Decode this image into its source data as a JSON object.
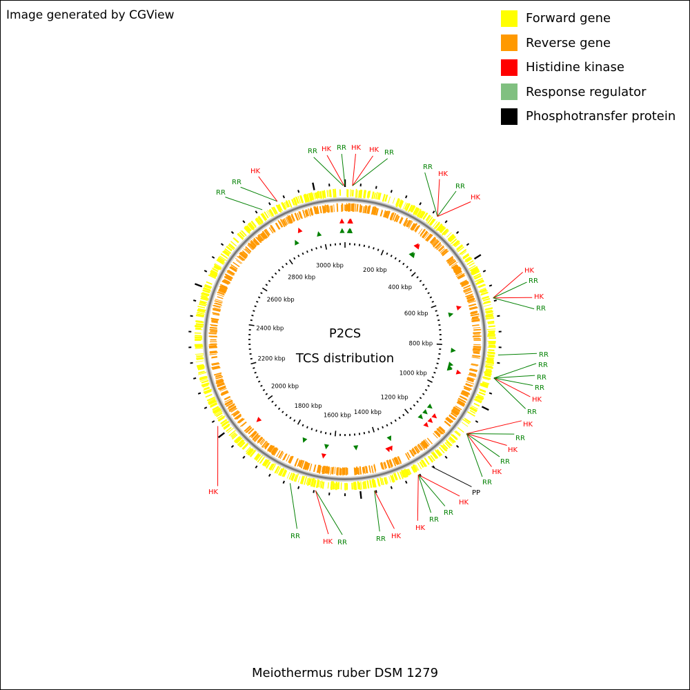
{
  "credit": "Image generated by CGView",
  "legend": [
    {
      "label": "Forward gene",
      "color": "#ffff00"
    },
    {
      "label": "Reverse gene",
      "color": "#ff9900"
    },
    {
      "label": "Histidine kinase",
      "color": "#ff0000"
    },
    {
      "label": "Response regulator",
      "color": "#80c080"
    },
    {
      "label": "Phosphotransfer protein",
      "color": "#000000"
    }
  ],
  "center_title": "P2CS",
  "center_subtitle": "TCS distribution",
  "caption": "Meiothermus ruber DSM 1279",
  "genome_length_kbp": 3100,
  "ruler_labels": [
    "200 kbp",
    "400 kbp",
    "600 kbp",
    "800 kbp",
    "1000 kbp",
    "1200 kbp",
    "1400 kbp",
    "1600 kbp",
    "1800 kbp",
    "2000 kbp",
    "2200 kbp",
    "2400 kbp",
    "2600 kbp",
    "2800 kbp",
    "3000 kbp"
  ],
  "colors": {
    "forward": "#ffff00",
    "reverse": "#ff9900",
    "backbone": "#7a7a7a",
    "hk": "#ff0000",
    "rr": "#008000",
    "pp": "#000000"
  },
  "feature_markers": [
    {
      "kbp": -13,
      "type": "hk"
    },
    {
      "kbp": -13,
      "type": "rr"
    },
    {
      "kbp": 20,
      "type": "hk"
    },
    {
      "kbp": 20,
      "type": "rr"
    },
    {
      "kbp": 24,
      "type": "hk"
    },
    {
      "kbp": 24,
      "type": "rr"
    },
    {
      "kbp": 322,
      "type": "hk"
    },
    {
      "kbp": 328,
      "type": "hk"
    },
    {
      "kbp": 328,
      "type": "rr"
    },
    {
      "kbp": 335,
      "type": "rr"
    },
    {
      "kbp": 640,
      "type": "hk"
    },
    {
      "kbp": 660,
      "type": "rr"
    },
    {
      "kbp": 825,
      "type": "rr"
    },
    {
      "kbp": 890,
      "type": "rr"
    },
    {
      "kbp": 905,
      "type": "rr"
    },
    {
      "kbp": 915,
      "type": "hk"
    },
    {
      "kbp": 910,
      "type": "rr"
    },
    {
      "kbp": 1105,
      "type": "rr"
    },
    {
      "kbp": 1125,
      "type": "hk"
    },
    {
      "kbp": 1138,
      "type": "rr"
    },
    {
      "kbp": 1150,
      "type": "hk"
    },
    {
      "kbp": 1168,
      "type": "rr"
    },
    {
      "kbp": 1175,
      "type": "hk"
    },
    {
      "kbp": 1340,
      "type": "rr"
    },
    {
      "kbp": 1353,
      "type": "hk"
    },
    {
      "kbp": 1365,
      "type": "hk"
    },
    {
      "kbp": 1500,
      "type": "rr"
    },
    {
      "kbp": 1635,
      "type": "rr"
    },
    {
      "kbp": 1640,
      "type": "hk"
    },
    {
      "kbp": 1740,
      "type": "rr"
    },
    {
      "kbp": 1955,
      "type": "hk"
    },
    {
      "kbp": 2870,
      "type": "rr"
    },
    {
      "kbp": 2905,
      "type": "hk"
    },
    {
      "kbp": 2980,
      "type": "rr"
    }
  ],
  "callouts": [
    {
      "label": "RR",
      "type": "rr",
      "kbp": -6,
      "lx": 452,
      "ly": 217
    },
    {
      "label": "HK",
      "type": "hk",
      "kbp": -3,
      "lx": 472,
      "ly": 214
    },
    {
      "label": "RR",
      "type": "rr",
      "kbp": 0,
      "lx": 494,
      "ly": 212
    },
    {
      "label": "HK",
      "type": "hk",
      "kbp": 24,
      "lx": 515,
      "ly": 212
    },
    {
      "label": "HK",
      "type": "hk",
      "kbp": 24,
      "lx": 541,
      "ly": 215
    },
    {
      "label": "RR",
      "type": "rr",
      "kbp": 24,
      "lx": 563,
      "ly": 219
    },
    {
      "label": "RR",
      "type": "rr",
      "kbp": 318,
      "lx": 619,
      "ly": 240
    },
    {
      "label": "HK",
      "type": "hk",
      "kbp": 318,
      "lx": 641,
      "ly": 250
    },
    {
      "label": "RR",
      "type": "rr",
      "kbp": 318,
      "lx": 666,
      "ly": 268
    },
    {
      "label": "HK",
      "type": "hk",
      "kbp": 318,
      "lx": 688,
      "ly": 284
    },
    {
      "label": "HK",
      "type": "hk",
      "kbp": 640,
      "lx": 766,
      "ly": 390
    },
    {
      "label": "RR",
      "type": "rr",
      "kbp": 640,
      "lx": 772,
      "ly": 405
    },
    {
      "label": "HK",
      "type": "hk",
      "kbp": 640,
      "lx": 780,
      "ly": 428
    },
    {
      "label": "RR",
      "type": "rr",
      "kbp": 640,
      "lx": 783,
      "ly": 445
    },
    {
      "label": "RR",
      "type": "rr",
      "kbp": 825,
      "lx": 787,
      "ly": 512
    },
    {
      "label": "RR",
      "type": "rr",
      "kbp": 900,
      "lx": 786,
      "ly": 527
    },
    {
      "label": "RR",
      "type": "rr",
      "kbp": 900,
      "lx": 784,
      "ly": 545
    },
    {
      "label": "RR",
      "type": "rr",
      "kbp": 900,
      "lx": 781,
      "ly": 560
    },
    {
      "label": "HK",
      "type": "hk",
      "kbp": 900,
      "lx": 777,
      "ly": 577
    },
    {
      "label": "RR",
      "type": "rr",
      "kbp": 900,
      "lx": 770,
      "ly": 595
    },
    {
      "label": "HK",
      "type": "hk",
      "kbp": 1100,
      "lx": 764,
      "ly": 613
    },
    {
      "label": "RR",
      "type": "rr",
      "kbp": 1100,
      "lx": 753,
      "ly": 633
    },
    {
      "label": "HK",
      "type": "hk",
      "kbp": 1100,
      "lx": 742,
      "ly": 650
    },
    {
      "label": "RR",
      "type": "rr",
      "kbp": 1100,
      "lx": 731,
      "ly": 667
    },
    {
      "label": "HK",
      "type": "hk",
      "kbp": 1100,
      "lx": 719,
      "ly": 682
    },
    {
      "label": "RR",
      "type": "rr",
      "kbp": 1100,
      "lx": 705,
      "ly": 697
    },
    {
      "label": "PP",
      "type": "pp",
      "kbp": 1255,
      "lx": 689,
      "ly": 712
    },
    {
      "label": "HK",
      "type": "hk",
      "kbp": 1305,
      "lx": 671,
      "ly": 726
    },
    {
      "label": "RR",
      "type": "rr",
      "kbp": 1305,
      "lx": 649,
      "ly": 741
    },
    {
      "label": "RR",
      "type": "rr",
      "kbp": 1305,
      "lx": 628,
      "ly": 751
    },
    {
      "label": "HK",
      "type": "hk",
      "kbp": 1305,
      "lx": 608,
      "ly": 763
    },
    {
      "label": "HK",
      "type": "hk",
      "kbp": 1455,
      "lx": 573,
      "ly": 775
    },
    {
      "label": "RR",
      "type": "rr",
      "kbp": 1455,
      "lx": 551,
      "ly": 779
    },
    {
      "label": "RR",
      "type": "rr",
      "kbp": 1645,
      "lx": 495,
      "ly": 784
    },
    {
      "label": "HK",
      "type": "hk",
      "kbp": 1645,
      "lx": 474,
      "ly": 783
    },
    {
      "label": "RR",
      "type": "rr",
      "kbp": 1730,
      "lx": 427,
      "ly": 775
    },
    {
      "label": "HK",
      "type": "hk",
      "kbp": 2030,
      "lx": 308,
      "ly": 711
    },
    {
      "label": "RR",
      "type": "rr",
      "kbp": 2820,
      "lx": 319,
      "ly": 277
    },
    {
      "label": "RR",
      "type": "rr",
      "kbp": 2875,
      "lx": 342,
      "ly": 262
    },
    {
      "label": "HK",
      "type": "hk",
      "kbp": 2875,
      "lx": 369,
      "ly": 246
    }
  ]
}
